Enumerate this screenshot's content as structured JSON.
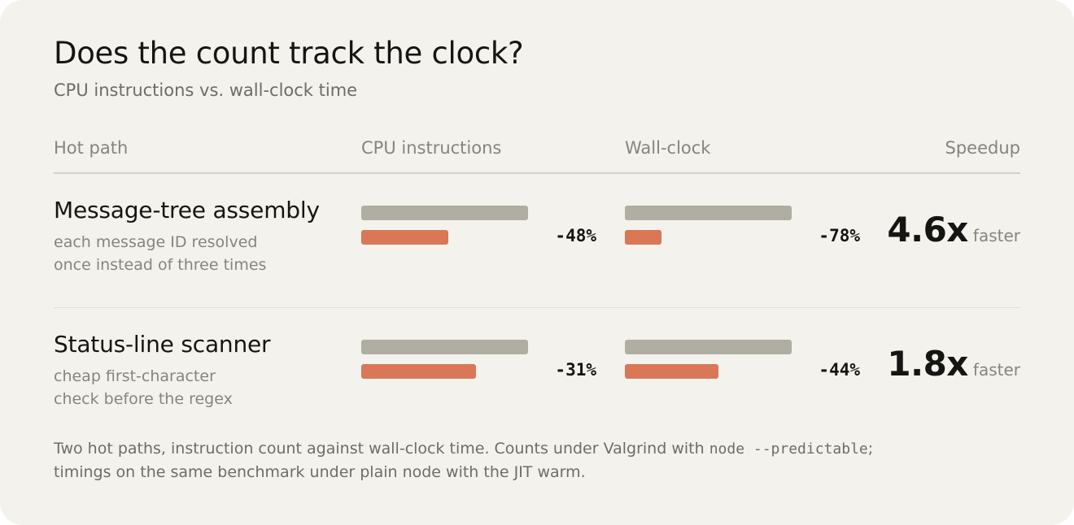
{
  "header": {
    "title": "Does the count track the clock?",
    "subtitle": "CPU instructions vs. wall-clock time"
  },
  "columns": {
    "hot_path": "Hot path",
    "cpu": "CPU instructions",
    "wall": "Wall-clock",
    "speedup": "Speedup"
  },
  "colors": {
    "before_bar": "#b0ada2",
    "after_bar": "#d97757",
    "background": "#f4f2ec"
  },
  "chart_data": {
    "type": "bar",
    "series": [
      {
        "values_before_after": "before = 100%, after = remaining share"
      }
    ],
    "rows": [
      {
        "name": "Message-tree assembly",
        "description_line1": "each message ID resolved",
        "description_line2": "once instead of three times",
        "cpu_change_pct": -48,
        "cpu_label": "-48%",
        "wall_change_pct": -78,
        "wall_label": "-78%",
        "speedup": "4.6x",
        "speedup_word": "faster"
      },
      {
        "name": "Status-line scanner",
        "description_line1": "cheap first-character",
        "description_line2": "check before the regex",
        "cpu_change_pct": -31,
        "cpu_label": "-31%",
        "wall_change_pct": -44,
        "wall_label": "-44%",
        "speedup": "1.8x",
        "speedup_word": "faster"
      }
    ]
  },
  "footnote": {
    "part1": "Two hot paths, instruction count against wall-clock time. Counts under Valgrind with ",
    "code": "node --predictable",
    "part2": ";",
    "line2": "timings on the same benchmark under plain node with the JIT warm."
  }
}
